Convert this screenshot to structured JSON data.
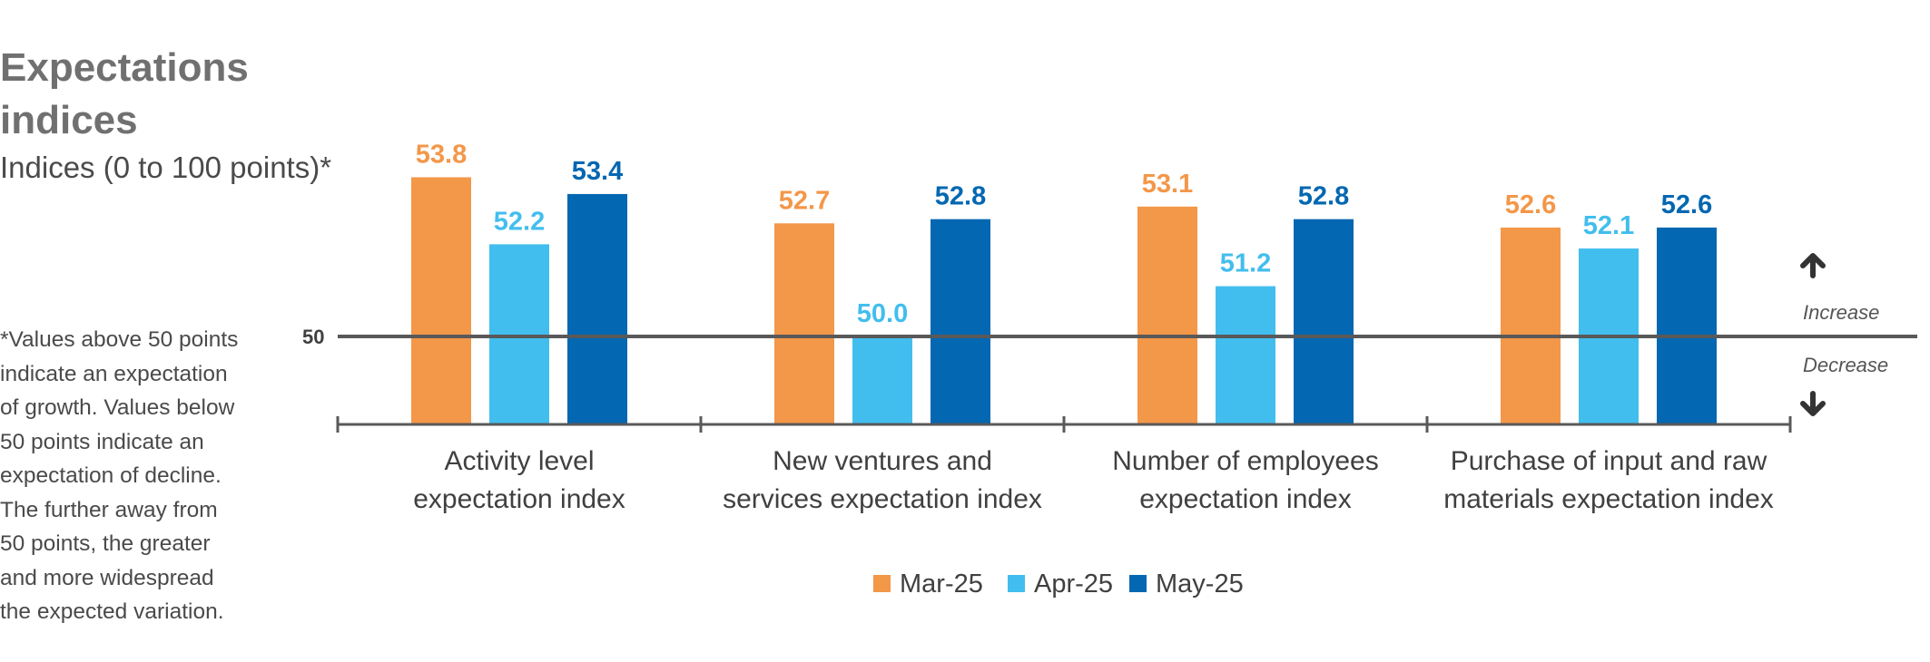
{
  "header": {
    "title": "Expectations indices",
    "subtitle": "Indices (0 to 100 points)*"
  },
  "footnote": "*Values above 50 points indicate an expectation of growth. Values below 50 points indicate an expectation of decline. The further away from 50 points, the greater and more widespread the expected variation.",
  "annotations": {
    "reference_label": "50",
    "increase": "Increase",
    "decrease": "Decrease"
  },
  "colors": {
    "Mar-25": "#F39749",
    "Apr-25": "#42BEEE",
    "May-25": "#0467B1",
    "axis": "#595959"
  },
  "chart_data": {
    "type": "bar",
    "title": "Expectations indices",
    "subtitle": "Indices (0 to 100 points)*",
    "categories": [
      [
        "Activity level",
        "expectation index"
      ],
      [
        "New ventures and",
        "services expectation index"
      ],
      [
        "Number of employees",
        "expectation index"
      ],
      [
        "Purchase of input and raw",
        "materials expectation index"
      ]
    ],
    "series": [
      {
        "name": "Mar-25",
        "values": [
          53.8,
          52.7,
          53.1,
          52.6
        ],
        "labels": [
          "53.8",
          "52.7",
          "53.1",
          "52.6"
        ]
      },
      {
        "name": "Apr-25",
        "values": [
          52.2,
          50.0,
          51.2,
          52.1
        ],
        "labels": [
          "52.2",
          "50.0",
          "51.2",
          "52.1"
        ]
      },
      {
        "name": "May-25",
        "values": [
          53.4,
          52.8,
          52.8,
          52.6
        ],
        "labels": [
          "53.4",
          "52.8",
          "52.8",
          "52.6"
        ]
      }
    ],
    "reference_line": 50,
    "ylim": [
      47.9,
      54.0
    ],
    "legend_position": "bottom-center",
    "grid": false
  }
}
